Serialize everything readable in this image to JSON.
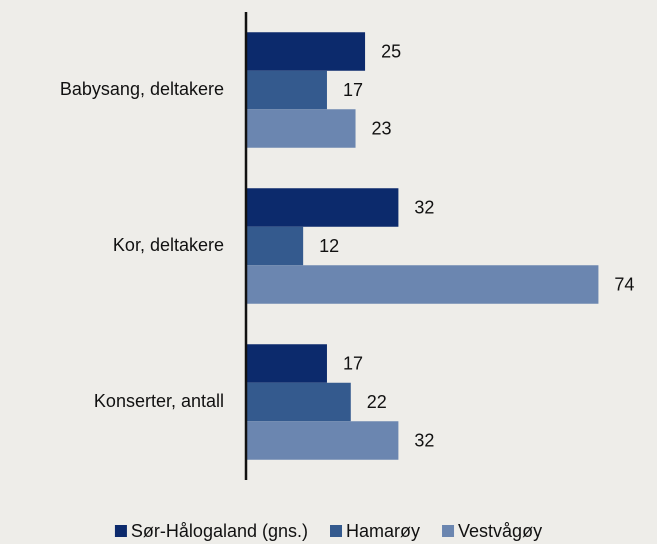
{
  "chart_data": {
    "type": "bar",
    "orientation": "horizontal",
    "categories": [
      "Babysang, deltakere",
      "Kor, deltakere",
      "Konserter, antall"
    ],
    "series": [
      {
        "name": "Sør-Hålogaland (gns.)",
        "color": "#0c2a6c",
        "values": [
          25,
          32,
          17
        ]
      },
      {
        "name": "Hamarøy",
        "color": "#345a8e",
        "values": [
          17,
          12,
          22
        ]
      },
      {
        "name": "Vestvågøy",
        "color": "#6b86b0",
        "values": [
          23,
          74,
          32
        ]
      }
    ],
    "xlim": [
      0,
      80
    ],
    "legend": "bottom"
  }
}
